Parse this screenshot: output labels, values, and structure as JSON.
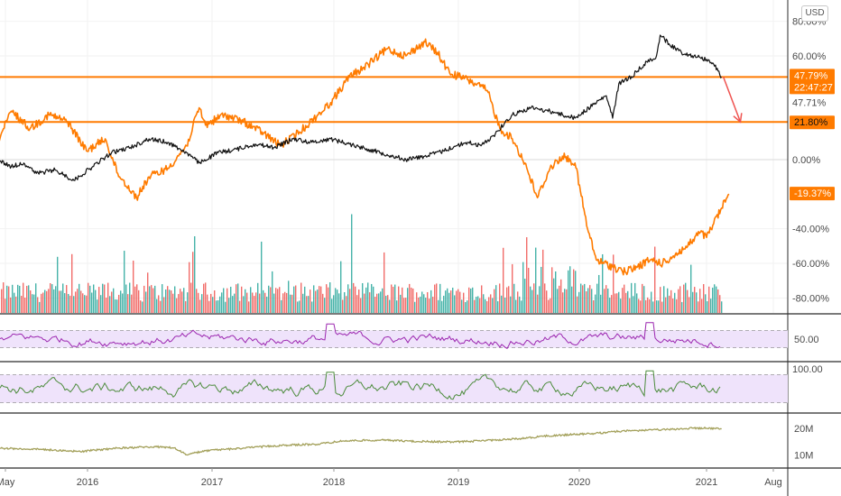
{
  "currency_label": "USD",
  "colors": {
    "orange": "#ff7b00",
    "black": "#111111",
    "red": "#ef5350",
    "green": "#26a69a",
    "purple": "#9c27b0",
    "rsi_green": "#4b8b3b",
    "olive": "#a3a05a",
    "band": "#efe3fb",
    "grid": "#f0f0f0",
    "axis_text": "#4a4a4a"
  },
  "chart_data": [
    {
      "type": "line",
      "ylim": [
        -85,
        85
      ],
      "y_ticks": [
        {
          "value": 80,
          "label": "80.00%"
        },
        {
          "value": 60,
          "label": "60.00%"
        },
        {
          "value": 0,
          "label": "0.00%"
        },
        {
          "value": -40,
          "label": "-40.00%"
        },
        {
          "value": -60,
          "label": "-60.00%"
        },
        {
          "value": -80,
          "label": "-80.00%"
        }
      ],
      "x_ticks": [
        "May",
        "2016",
        "2017",
        "2018",
        "2019",
        "2020",
        "2021",
        "Aug"
      ],
      "series": [
        {
          "color": "orange",
          "x": [
            2015.33,
            2015.45,
            2015.6,
            2015.75,
            2015.9,
            2016.05,
            2016.2,
            2016.3,
            2016.45,
            2016.55,
            2016.7,
            2016.85,
            2016.95,
            2017.0,
            2017.15,
            2017.3,
            2017.45,
            2017.6,
            2017.75,
            2017.9,
            2018.0,
            2018.15,
            2018.3,
            2018.45,
            2018.6,
            2018.75,
            2018.85,
            2018.95,
            2019.1,
            2019.25,
            2019.35,
            2019.45,
            2019.55,
            2019.65,
            2019.75,
            2019.85,
            2019.95,
            2020.05,
            2020.12,
            2020.18,
            2020.25,
            2020.35,
            2020.45,
            2020.55,
            2020.65,
            2020.75,
            2020.85,
            2020.95,
            2021.0,
            2021.05,
            2021.12,
            2021.18
          ],
          "y": [
            8,
            28,
            18,
            26,
            22,
            5,
            12,
            -8,
            -22,
            -10,
            -5,
            8,
            30,
            20,
            26,
            22,
            16,
            8,
            16,
            26,
            33,
            48,
            55,
            64,
            60,
            68,
            62,
            50,
            46,
            40,
            18,
            12,
            -2,
            -22,
            -5,
            2,
            -2,
            -40,
            -58,
            -60,
            -62,
            -65,
            -62,
            -58,
            -60,
            -55,
            -50,
            -42,
            -45,
            -38,
            -28,
            -20
          ]
        },
        {
          "color": "black",
          "x": [
            2015.33,
            2015.45,
            2015.55,
            2015.65,
            2015.8,
            2015.95,
            2016.1,
            2016.25,
            2016.4,
            2016.55,
            2016.7,
            2016.85,
            2016.95,
            2017.1,
            2017.25,
            2017.4,
            2017.55,
            2017.7,
            2017.85,
            2018.0,
            2018.15,
            2018.3,
            2018.45,
            2018.6,
            2018.75,
            2018.9,
            2019.0,
            2019.1,
            2019.2,
            2019.3,
            2019.45,
            2019.6,
            2019.75,
            2019.85,
            2019.95,
            2020.1,
            2020.2,
            2020.25,
            2020.3,
            2020.4,
            2020.5,
            2020.6,
            2020.63,
            2020.7,
            2020.8,
            2020.9,
            2021.0,
            2021.05,
            2021.12
          ],
          "y": [
            0,
            -4,
            -2,
            -8,
            -6,
            -12,
            -4,
            4,
            7,
            12,
            10,
            4,
            -2,
            4,
            6,
            9,
            7,
            12,
            10,
            12,
            9,
            6,
            3,
            0,
            2,
            5,
            8,
            10,
            8,
            14,
            26,
            30,
            28,
            26,
            24,
            32,
            37,
            24,
            44,
            48,
            55,
            60,
            72,
            67,
            62,
            60,
            58,
            56,
            47.79
          ]
        }
      ],
      "lines": [
        {
          "value": 47.79,
          "color": "orange"
        },
        {
          "value": 21.8,
          "color": "orange"
        },
        {
          "value": 0,
          "color": "grid"
        }
      ],
      "arrow": {
        "from": [
          2021.12,
          47.79
        ],
        "to": [
          2021.27,
          21.8
        ],
        "color": "red"
      },
      "tags": [
        {
          "value": 47.79,
          "lines": [
            "47.79%",
            "22:47:27"
          ],
          "color": "orange"
        },
        {
          "value": 21.8,
          "lines": [
            "21.80%"
          ],
          "color": "orange"
        },
        {
          "value": -19.37,
          "lines": [
            "-19.37%"
          ],
          "color": "orange"
        }
      ],
      "price_note": {
        "value": 47.71,
        "label": "47.71%"
      }
    },
    {
      "type": "bar",
      "name": "volume",
      "value_range": [
        0.2,
        1.0
      ],
      "description_colors": [
        "red",
        "green"
      ]
    },
    {
      "type": "line",
      "name": "oscillator-1",
      "color": "purple",
      "ylim": [
        0,
        100
      ],
      "band": [
        30,
        70
      ],
      "y_ticks": [
        {
          "value": 50,
          "label": "50.00"
        }
      ]
    },
    {
      "type": "line",
      "name": "oscillator-2",
      "color": "rsi_green",
      "ylim": [
        0,
        100
      ],
      "band": [
        20,
        80
      ],
      "y_ticks": [
        {
          "value": 100,
          "label": "100.00"
        }
      ]
    },
    {
      "type": "line",
      "name": "volume-average",
      "color": "olive",
      "ylim": [
        5,
        25
      ],
      "y_ticks": [
        {
          "value": 20,
          "label": "20M"
        },
        {
          "value": 10,
          "label": "10M"
        }
      ],
      "x": [
        2015.33,
        2015.7,
        2016.0,
        2016.3,
        2016.6,
        2016.75,
        2016.85,
        2017.0,
        2017.3,
        2017.6,
        2017.9,
        2018.1,
        2018.4,
        2018.7,
        2019.0,
        2019.3,
        2019.5,
        2019.7,
        2019.9,
        2020.1,
        2020.3,
        2020.5,
        2020.7,
        2020.9,
        2021.0,
        2021.12
      ],
      "y": [
        12.5,
        12,
        11.2,
        12.5,
        13,
        12.6,
        10,
        11.5,
        12.5,
        13.5,
        14,
        15.2,
        15.5,
        15,
        14.8,
        15.5,
        16,
        17,
        17.5,
        18,
        18.8,
        19.2,
        19.5,
        20,
        20,
        19.7
      ]
    }
  ]
}
